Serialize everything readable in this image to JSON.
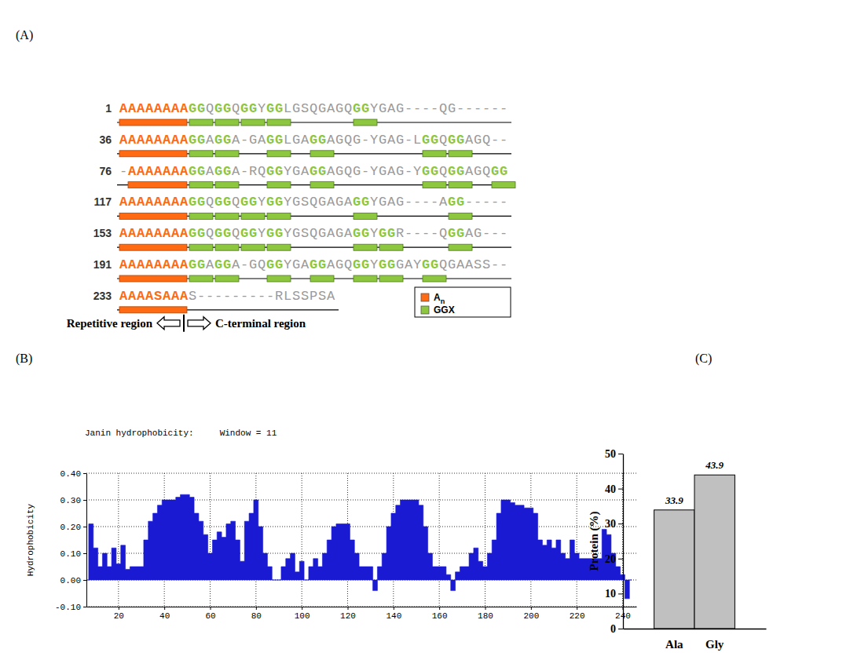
{
  "panel_labels": [
    "(A)",
    "(B)",
    "(C)"
  ],
  "panel_a": {
    "rows": [
      {
        "start": 1,
        "segments": [
          {
            "text": "AAAAAAAA",
            "kind": "A"
          },
          {
            "text": "GG",
            "kind": "G"
          },
          {
            "text": "Q",
            "kind": "x"
          },
          {
            "text": "GG",
            "kind": "G"
          },
          {
            "text": "Q",
            "kind": "x"
          },
          {
            "text": "GG",
            "kind": "G"
          },
          {
            "text": "Y",
            "kind": "x"
          },
          {
            "text": "GG",
            "kind": "G"
          },
          {
            "text": "LGSQGAGQ",
            "kind": "x"
          },
          {
            "text": "GG",
            "kind": "G"
          },
          {
            "text": "YGAG----QG------",
            "kind": "x"
          }
        ]
      },
      {
        "start": 36,
        "segments": [
          {
            "text": "AAAAAAAA",
            "kind": "A"
          },
          {
            "text": "GG",
            "kind": "G"
          },
          {
            "text": "A",
            "kind": "x"
          },
          {
            "text": "GG",
            "kind": "G"
          },
          {
            "text": "A-GA",
            "kind": "x"
          },
          {
            "text": "GG",
            "kind": "G"
          },
          {
            "text": "LGA",
            "kind": "x"
          },
          {
            "text": "GG",
            "kind": "G"
          },
          {
            "text": "AGQG-YGAG-L",
            "kind": "x"
          },
          {
            "text": "GG",
            "kind": "G"
          },
          {
            "text": "Q",
            "kind": "x"
          },
          {
            "text": "GG",
            "kind": "G"
          },
          {
            "text": "AGQ--",
            "kind": "x"
          }
        ]
      },
      {
        "start": 76,
        "segments": [
          {
            "text": "-",
            "kind": "x"
          },
          {
            "text": "AAAAAAA",
            "kind": "A"
          },
          {
            "text": "GG",
            "kind": "G"
          },
          {
            "text": "A",
            "kind": "x"
          },
          {
            "text": "GG",
            "kind": "G"
          },
          {
            "text": "A-RQ",
            "kind": "x"
          },
          {
            "text": "GG",
            "kind": "G"
          },
          {
            "text": "YGA",
            "kind": "x"
          },
          {
            "text": "GG",
            "kind": "G"
          },
          {
            "text": "AGQG-YGAG-Y",
            "kind": "x"
          },
          {
            "text": "GG",
            "kind": "G"
          },
          {
            "text": "Q",
            "kind": "x"
          },
          {
            "text": "GG",
            "kind": "G"
          },
          {
            "text": "AGQ",
            "kind": "x"
          },
          {
            "text": "GG",
            "kind": "G"
          }
        ]
      },
      {
        "start": 117,
        "segments": [
          {
            "text": "AAAAAAAA",
            "kind": "A"
          },
          {
            "text": "GG",
            "kind": "G"
          },
          {
            "text": "Q",
            "kind": "x"
          },
          {
            "text": "GG",
            "kind": "G"
          },
          {
            "text": "Q",
            "kind": "x"
          },
          {
            "text": "GG",
            "kind": "G"
          },
          {
            "text": "Y",
            "kind": "x"
          },
          {
            "text": "GG",
            "kind": "G"
          },
          {
            "text": "YGSQGAGA",
            "kind": "x"
          },
          {
            "text": "GG",
            "kind": "G"
          },
          {
            "text": "YGAG----A",
            "kind": "x"
          },
          {
            "text": "GG",
            "kind": "G"
          },
          {
            "text": "-----",
            "kind": "x"
          }
        ]
      },
      {
        "start": 153,
        "segments": [
          {
            "text": "AAAAAAAA",
            "kind": "A"
          },
          {
            "text": "GG",
            "kind": "G"
          },
          {
            "text": "Q",
            "kind": "x"
          },
          {
            "text": "GG",
            "kind": "G"
          },
          {
            "text": "Q",
            "kind": "x"
          },
          {
            "text": "GG",
            "kind": "G"
          },
          {
            "text": "Y",
            "kind": "x"
          },
          {
            "text": "GG",
            "kind": "G"
          },
          {
            "text": "YGSQGAGA",
            "kind": "x"
          },
          {
            "text": "GG",
            "kind": "G"
          },
          {
            "text": "Y",
            "kind": "x"
          },
          {
            "text": "GG",
            "kind": "G"
          },
          {
            "text": "R----Q",
            "kind": "x"
          },
          {
            "text": "GG",
            "kind": "G"
          },
          {
            "text": "AG---",
            "kind": "x"
          }
        ]
      },
      {
        "start": 191,
        "segments": [
          {
            "text": "AAAAAAAA",
            "kind": "A"
          },
          {
            "text": "GG",
            "kind": "G"
          },
          {
            "text": "A",
            "kind": "x"
          },
          {
            "text": "GG",
            "kind": "G"
          },
          {
            "text": "A-GQ",
            "kind": "x"
          },
          {
            "text": "GG",
            "kind": "G"
          },
          {
            "text": "YGA",
            "kind": "x"
          },
          {
            "text": "GG",
            "kind": "G"
          },
          {
            "text": "AGQ",
            "kind": "x"
          },
          {
            "text": "GG",
            "kind": "G"
          },
          {
            "text": "Y",
            "kind": "x"
          },
          {
            "text": "GG",
            "kind": "G"
          },
          {
            "text": "GAY",
            "kind": "x"
          },
          {
            "text": "GG",
            "kind": "G"
          },
          {
            "text": "QGAASS--",
            "kind": "x"
          }
        ]
      },
      {
        "start": 233,
        "segments": [
          {
            "text": "AAAASAAA",
            "kind": "A"
          },
          {
            "text": "S---------RLSSPSA",
            "kind": "x"
          }
        ]
      }
    ],
    "legend": [
      {
        "label": "A",
        "subscript": "n",
        "color": "#ff6a13"
      },
      {
        "label": "GGX",
        "color": "#8dc63f"
      }
    ],
    "region_labels": {
      "left": "Repetitive region",
      "right": "C-terminal region"
    }
  },
  "chart_data": [
    {
      "type": "area",
      "title": "Janin hydrophobicity:     Window = 11",
      "ylabel": "Hydrophobicity",
      "color": "#1a1ad2",
      "x": [
        6,
        8,
        10,
        12,
        14,
        16,
        18,
        20,
        22,
        24,
        26,
        28,
        30,
        32,
        34,
        36,
        38,
        40,
        42,
        44,
        46,
        48,
        50,
        52,
        54,
        56,
        58,
        60,
        62,
        64,
        66,
        68,
        70,
        72,
        74,
        76,
        78,
        80,
        82,
        84,
        86,
        88,
        90,
        92,
        94,
        96,
        98,
        100,
        102,
        104,
        106,
        108,
        110,
        112,
        114,
        116,
        118,
        120,
        122,
        124,
        126,
        128,
        130,
        132,
        134,
        136,
        138,
        140,
        142,
        144,
        146,
        148,
        150,
        152,
        154,
        156,
        158,
        160,
        162,
        164,
        166,
        168,
        170,
        172,
        174,
        176,
        178,
        180,
        182,
        184,
        186,
        188,
        190,
        192,
        194,
        196,
        198,
        200,
        202,
        204,
        206,
        208,
        210,
        212,
        214,
        216,
        218,
        220,
        222,
        224,
        226,
        228,
        230,
        232,
        234,
        236,
        238,
        240,
        242,
        244
      ],
      "values": [
        0,
        0.21,
        0.12,
        0.05,
        0.1,
        0.05,
        0.12,
        0.06,
        0.13,
        0.04,
        0.05,
        0.05,
        0.05,
        0.15,
        0.22,
        0.25,
        0.28,
        0.3,
        0.3,
        0.3,
        0.31,
        0.32,
        0.32,
        0.31,
        0.25,
        0.22,
        0.17,
        0.1,
        0.15,
        0.18,
        0.16,
        0.21,
        0.22,
        0.15,
        0.07,
        0.22,
        0.25,
        0.3,
        0.2,
        0.1,
        0.05,
        0,
        0,
        0.05,
        0.08,
        0.1,
        0.03,
        0.07,
        0,
        0.05,
        0.08,
        0.05,
        0.1,
        0.15,
        0.2,
        0.21,
        0.21,
        0.21,
        0.15,
        0.1,
        0.05,
        0.05,
        0.05,
        -0.04,
        0.05,
        0.1,
        0.2,
        0.25,
        0.28,
        0.3,
        0.3,
        0.3,
        0.3,
        0.28,
        0.2,
        0.1,
        0.05,
        0.05,
        0.05,
        0.02,
        -0.04,
        0.03,
        0.05,
        0.05,
        0.1,
        0.12,
        0.07,
        0.05,
        0.1,
        0.15,
        0.25,
        0.3,
        0.3,
        0.29,
        0.28,
        0.28,
        0.27,
        0.27,
        0.25,
        0.15,
        0.13,
        0.15,
        0.12,
        0.15,
        0.1,
        0.08,
        0.15,
        0.1,
        0.08,
        0.08,
        0.08,
        0.08,
        0.08,
        0.19,
        0.17,
        0.1,
        0.05,
        0.02,
        -0.07,
        0
      ],
      "xlim": [
        6,
        246
      ],
      "ylim": [
        -0.1,
        0.4
      ],
      "xticks": [
        20,
        40,
        60,
        80,
        100,
        120,
        140,
        160,
        180,
        200,
        220,
        240
      ],
      "yticks": [
        {
          "value": -0.1,
          "label": "-0.10"
        },
        {
          "value": 0,
          "label": "0.00"
        },
        {
          "value": 0.1,
          "label": "0.10"
        },
        {
          "value": 0.2,
          "label": "0.20"
        },
        {
          "value": 0.3,
          "label": "0.30"
        },
        {
          "value": 0.4,
          "label": "0.40"
        }
      ],
      "grid": true
    },
    {
      "type": "bar",
      "ylabel": "Protein (%)",
      "categories": [
        "Ala",
        "Gly"
      ],
      "values": [
        33.9,
        43.9
      ],
      "color": "#c0c0c0",
      "ylim": [
        0,
        50
      ],
      "yticks": [
        0,
        10,
        20,
        30,
        40,
        50
      ],
      "data_labels": true
    }
  ]
}
